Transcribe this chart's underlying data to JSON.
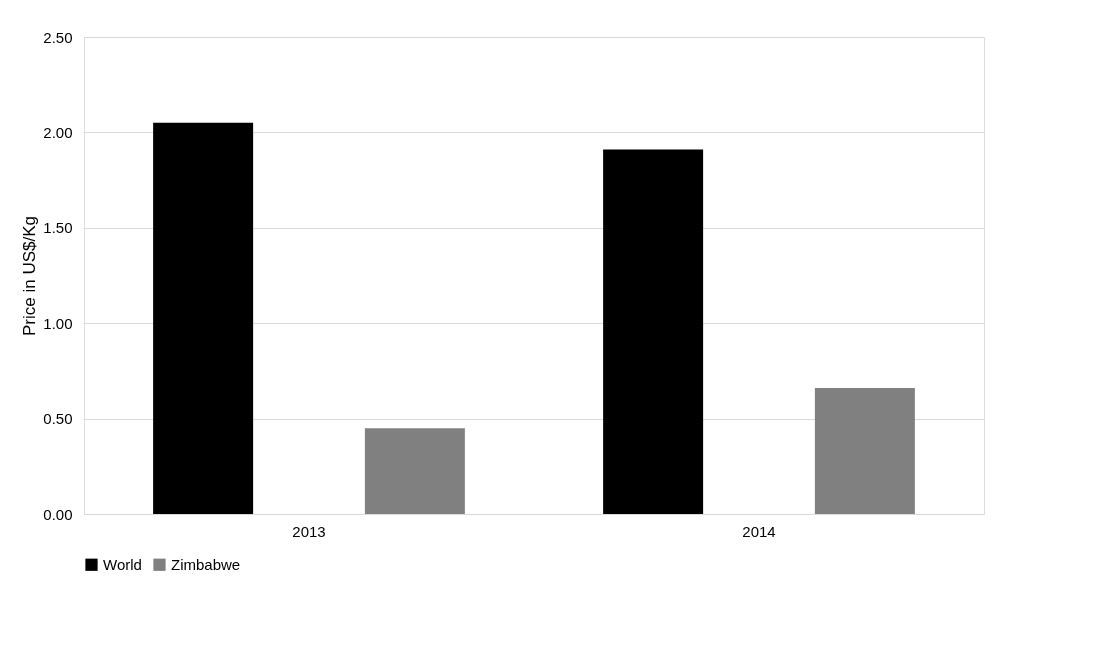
{
  "chart_data": {
    "type": "bar",
    "ylabel": "Price in US$/Kg",
    "categories": [
      "2013",
      "2014"
    ],
    "series": [
      {
        "name": "World",
        "color": "#000000",
        "values": [
          2.05,
          1.91
        ]
      },
      {
        "name": "Zimbabwe",
        "color": "#808080",
        "values": [
          0.45,
          0.66
        ]
      }
    ],
    "ylim": [
      0,
      2.5
    ],
    "yticks": [
      {
        "value": 0,
        "label": "0.00"
      },
      {
        "value": 0.5,
        "label": "0.50"
      },
      {
        "value": 1,
        "label": "1.00"
      },
      {
        "value": 1.5,
        "label": "1.50"
      },
      {
        "value": 2,
        "label": "2.00"
      },
      {
        "value": 2.5,
        "label": "2.50"
      }
    ],
    "grid": "y",
    "legend": "bottom"
  }
}
